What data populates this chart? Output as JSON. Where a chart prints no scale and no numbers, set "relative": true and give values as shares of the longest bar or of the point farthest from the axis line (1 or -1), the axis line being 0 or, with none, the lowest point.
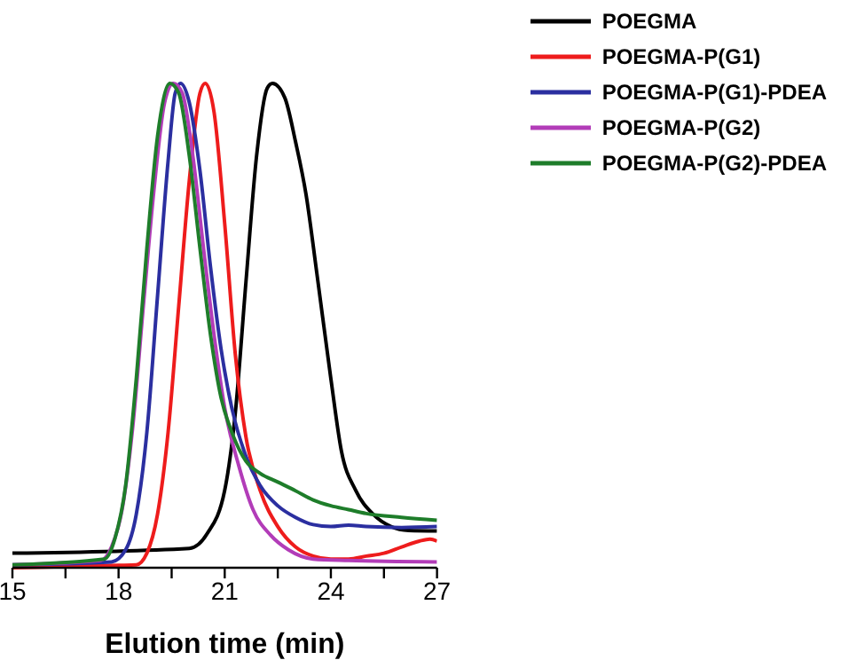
{
  "chart_data": {
    "type": "line",
    "xlabel": "Elution time (min)",
    "relative": true,
    "xlim": [
      15,
      27
    ],
    "xticks": [
      15,
      {
        "value": 16.5,
        "label": null
      },
      18,
      {
        "value": 19.5,
        "label": null
      },
      21,
      {
        "value": 22.5,
        "label": null
      },
      24,
      {
        "value": 25.5,
        "label": null
      },
      27
    ],
    "legend": "top right",
    "line_style": "solid",
    "series": [
      {
        "name": "POEGMA",
        "color": "#000000",
        "x": [
          15,
          20,
          20.5,
          21,
          21.3,
          21.6,
          21.9,
          22.2,
          22.35,
          22.7,
          23,
          23.3,
          23.6,
          24,
          24.3,
          24.7,
          25.2,
          25.7,
          26.2,
          27
        ],
        "values": [
          0.03,
          0.04,
          0.07,
          0.16,
          0.32,
          0.59,
          0.85,
          0.99,
          1,
          0.97,
          0.88,
          0.77,
          0.61,
          0.39,
          0.24,
          0.16,
          0.11,
          0.085,
          0.077,
          0.076
        ]
      },
      {
        "name": "POEGMA-P(G1)",
        "color": "#ee1c1c",
        "x": [
          15,
          18,
          18.5,
          18.8,
          19.1,
          19.4,
          19.7,
          20,
          20.3,
          20.45,
          20.7,
          21,
          21.3,
          21.6,
          22,
          22.5,
          23,
          23.5,
          24,
          24.5,
          25,
          25.5,
          26,
          26.5,
          26.8,
          27
        ],
        "values": [
          0,
          0.005,
          0.006,
          0.03,
          0.11,
          0.28,
          0.54,
          0.8,
          0.98,
          1,
          0.94,
          0.71,
          0.44,
          0.27,
          0.16,
          0.085,
          0.043,
          0.024,
          0.018,
          0.018,
          0.024,
          0.03,
          0.043,
          0.055,
          0.059,
          0.055
        ]
      },
      {
        "name": "POEGMA-P(G1)-PDEA",
        "color": "#2b2fa0",
        "x": [
          15,
          17.8,
          18.2,
          18.5,
          18.8,
          19.1,
          19.4,
          19.6,
          19.75,
          20,
          20.3,
          20.6,
          20.9,
          21.2,
          21.6,
          22,
          22.5,
          23,
          23.5,
          24,
          24.5,
          25,
          26,
          27
        ],
        "values": [
          0.006,
          0.012,
          0.037,
          0.11,
          0.28,
          0.56,
          0.84,
          0.98,
          1,
          0.96,
          0.82,
          0.62,
          0.45,
          0.33,
          0.23,
          0.17,
          0.128,
          0.104,
          0.089,
          0.085,
          0.088,
          0.085,
          0.083,
          0.085
        ]
      },
      {
        "name": "POEGMA-P(G2)",
        "color": "#b23cb8",
        "x": [
          15,
          17.5,
          17.8,
          18.1,
          18.4,
          18.7,
          19,
          19.3,
          19.55,
          19.8,
          20.1,
          20.4,
          20.7,
          21,
          21.4,
          21.8,
          22.3,
          22.8,
          23.5,
          24.5,
          27
        ],
        "values": [
          0.006,
          0.015,
          0.043,
          0.12,
          0.29,
          0.54,
          0.78,
          0.96,
          1,
          0.98,
          0.85,
          0.66,
          0.48,
          0.33,
          0.21,
          0.12,
          0.067,
          0.037,
          0.018,
          0.015,
          0.012
        ]
      },
      {
        "name": "POEGMA-P(G2)-PDEA",
        "color": "#1e7d2a",
        "x": [
          15,
          17.6,
          17.9,
          18.2,
          18.5,
          18.8,
          19.1,
          19.45,
          19.7,
          20,
          20.3,
          20.6,
          20.9,
          21.2,
          21.6,
          22,
          22.5,
          23,
          23.5,
          24,
          24.5,
          25,
          26,
          27
        ],
        "values": [
          0.006,
          0.018,
          0.061,
          0.17,
          0.39,
          0.66,
          0.89,
          1,
          0.98,
          0.85,
          0.66,
          0.48,
          0.35,
          0.28,
          0.22,
          0.195,
          0.177,
          0.159,
          0.14,
          0.128,
          0.12,
          0.112,
          0.104,
          0.098
        ]
      }
    ]
  }
}
